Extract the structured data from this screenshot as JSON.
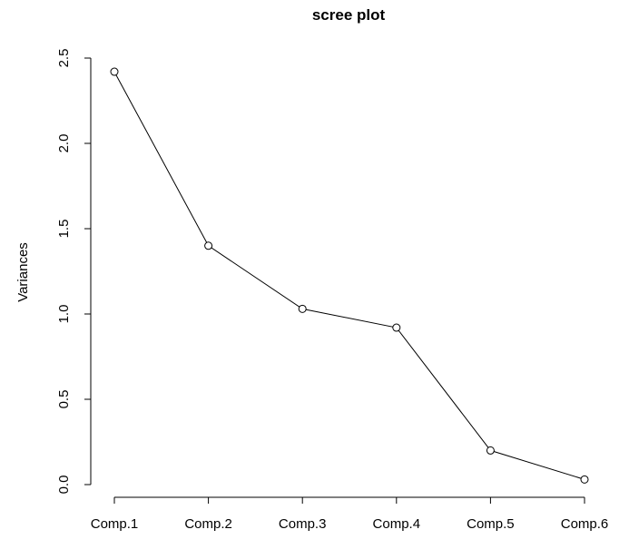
{
  "chart_data": {
    "type": "line",
    "title": "scree plot",
    "xlabel": "",
    "ylabel": "Variances",
    "categories": [
      "Comp.1",
      "Comp.2",
      "Comp.3",
      "Comp.4",
      "Comp.5",
      "Comp.6"
    ],
    "series": [
      {
        "values": [
          2.42,
          1.4,
          1.03,
          0.92,
          0.2,
          0.03
        ]
      }
    ],
    "ylim": [
      0,
      2.5
    ],
    "yticks": [
      "0.0",
      "0.5",
      "1.0",
      "1.5",
      "2.0",
      "2.5"
    ],
    "grid": false,
    "marker": "open-circle"
  }
}
